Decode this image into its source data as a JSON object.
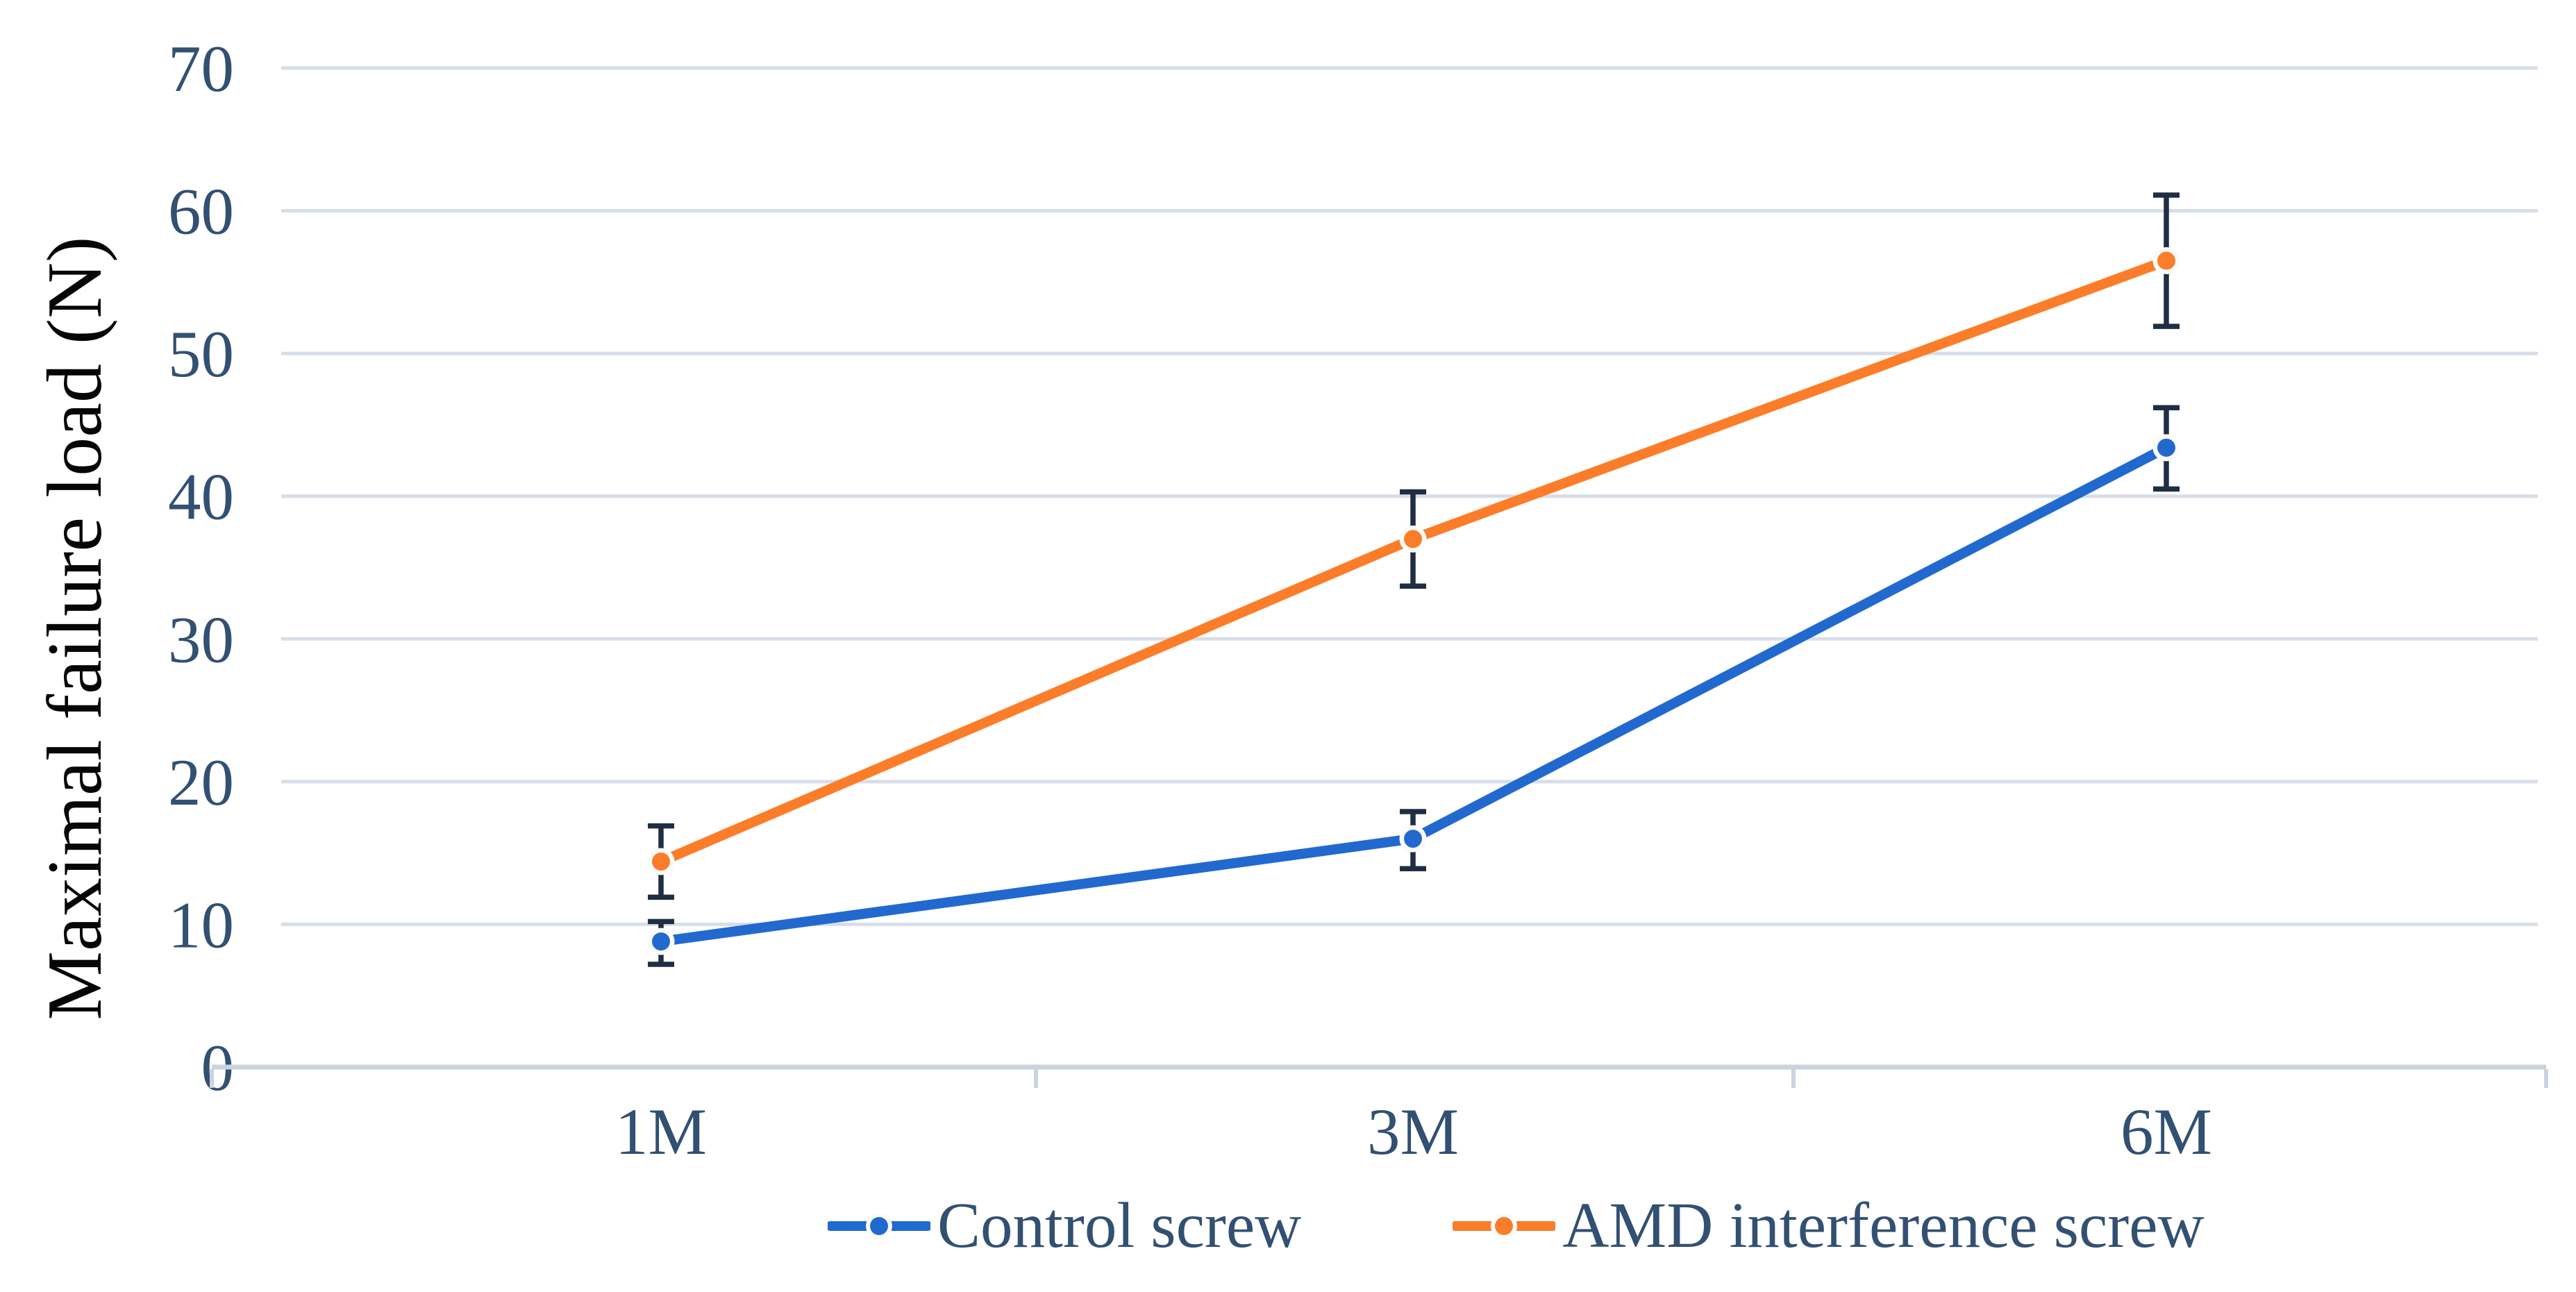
{
  "chart_data": {
    "type": "line",
    "title": "",
    "xlabel": "",
    "ylabel": "Maximal failure load (N)",
    "categories": [
      "1M",
      "3M",
      "6M"
    ],
    "y_ticks": [
      0,
      10,
      20,
      30,
      40,
      50,
      60,
      70
    ],
    "ylim": [
      0,
      70
    ],
    "grid": true,
    "legend_position": "bottom",
    "series": [
      {
        "name": "Control screw",
        "color": "#2269CF",
        "values": [
          8.8,
          16.0,
          43.4
        ],
        "error_plus": [
          1.4,
          1.9,
          2.8
        ],
        "error_minus": [
          1.6,
          2.1,
          2.9
        ]
      },
      {
        "name": "AMD interference screw",
        "color": "#FB7D29",
        "values": [
          14.4,
          37.0,
          56.5
        ],
        "error_plus": [
          2.5,
          3.3,
          4.6
        ],
        "error_minus": [
          2.5,
          3.3,
          4.6
        ]
      }
    ],
    "colors": {
      "error_bar": "#1F2E42",
      "axis_text": "#325072",
      "gridline": "#D8DEE8",
      "baseline": "#CBD3DF",
      "marker_halo": "#FBFBF9",
      "title_text": "#060606"
    }
  }
}
